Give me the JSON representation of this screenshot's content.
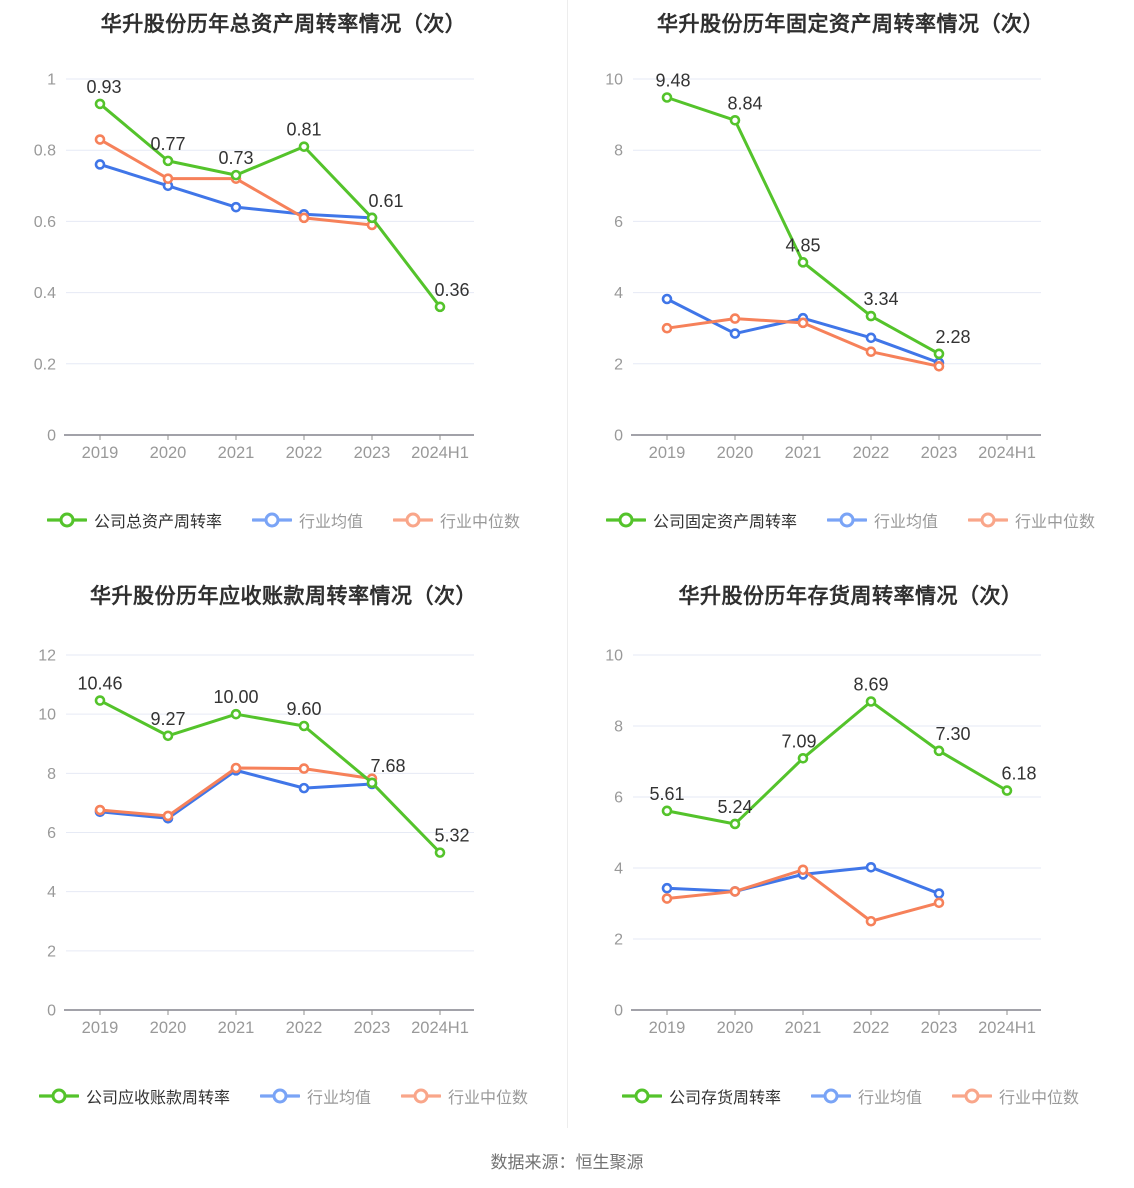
{
  "page": {
    "source_text": "数据来源：恒生聚源"
  },
  "colors": {
    "company_green": "#54c32b",
    "industry_avg_blue": "#4076e8",
    "industry_median_orange": "#f6815a",
    "legend_blue": "#7aa4f6",
    "legend_orange": "#f9a68a",
    "gridline": "#e6eaf5",
    "axis_line": "#6b6b76",
    "tick_label": "#999999",
    "data_label": "#333333"
  },
  "chart_data": [
    {
      "type": "line",
      "title": "华升股份历年总资产周转率情况（次）",
      "categories": [
        "2019",
        "2020",
        "2021",
        "2022",
        "2023",
        "2024H1"
      ],
      "ylim": [
        0,
        1
      ],
      "yticks": [
        "0",
        "0.2",
        "0.4",
        "0.6",
        "0.8",
        "1"
      ],
      "grid": true,
      "legend_position": "bottom",
      "series": [
        {
          "name": "公司总资产周转率",
          "values": [
            0.93,
            0.77,
            0.73,
            0.81,
            0.61,
            0.36
          ],
          "point_labels": [
            "0.93",
            "0.77",
            "0.73",
            "0.81",
            "0.61",
            "0.36"
          ]
        },
        {
          "name": "行业均值",
          "values": [
            0.76,
            0.7,
            0.64,
            0.62,
            0.61,
            null
          ]
        },
        {
          "name": "行业中位数",
          "values": [
            0.83,
            0.72,
            0.72,
            0.61,
            0.59,
            null
          ]
        }
      ]
    },
    {
      "type": "line",
      "title": "华升股份历年固定资产周转率情况（次）",
      "categories": [
        "2019",
        "2020",
        "2021",
        "2022",
        "2023",
        "2024H1"
      ],
      "ylim": [
        0,
        10
      ],
      "yticks": [
        "0",
        "2",
        "4",
        "6",
        "8",
        "10"
      ],
      "grid": true,
      "legend_position": "bottom",
      "series": [
        {
          "name": "公司固定资产周转率",
          "values": [
            9.48,
            8.84,
            4.85,
            3.34,
            2.28,
            null
          ],
          "point_labels": [
            "9.48",
            "8.84",
            "4.85",
            "3.34",
            "2.28",
            ""
          ]
        },
        {
          "name": "行业均值",
          "values": [
            3.82,
            2.85,
            3.28,
            2.73,
            2.03,
            null
          ]
        },
        {
          "name": "行业中位数",
          "values": [
            3.0,
            3.27,
            3.15,
            2.34,
            1.93,
            null
          ]
        }
      ]
    },
    {
      "type": "line",
      "title": "华升股份历年应收账款周转率情况（次）",
      "categories": [
        "2019",
        "2020",
        "2021",
        "2022",
        "2023",
        "2024H1"
      ],
      "ylim": [
        0,
        12
      ],
      "yticks": [
        "0",
        "2",
        "4",
        "6",
        "8",
        "10",
        "12"
      ],
      "grid": true,
      "legend_position": "bottom",
      "series": [
        {
          "name": "公司应收账款周转率",
          "values": [
            10.46,
            9.27,
            10.0,
            9.6,
            7.68,
            5.32
          ],
          "point_labels": [
            "10.46",
            "9.27",
            "10.00",
            "9.60",
            "7.68",
            "5.32"
          ]
        },
        {
          "name": "行业均值",
          "values": [
            6.7,
            6.48,
            8.1,
            7.5,
            7.64,
            null
          ]
        },
        {
          "name": "行业中位数",
          "values": [
            6.76,
            6.56,
            8.18,
            8.16,
            7.82,
            null
          ]
        }
      ]
    },
    {
      "type": "line",
      "title": "华升股份历年存货周转率情况（次）",
      "categories": [
        "2019",
        "2020",
        "2021",
        "2022",
        "2023",
        "2024H1"
      ],
      "ylim": [
        0,
        10
      ],
      "yticks": [
        "0",
        "2",
        "4",
        "6",
        "8",
        "10"
      ],
      "grid": true,
      "legend_position": "bottom",
      "series": [
        {
          "name": "公司存货周转率",
          "values": [
            5.61,
            5.24,
            7.09,
            8.69,
            7.3,
            6.18
          ],
          "point_labels": [
            "5.61",
            "5.24",
            "7.09",
            "8.69",
            "7.30",
            "6.18"
          ]
        },
        {
          "name": "行业均值",
          "values": [
            3.43,
            3.34,
            3.82,
            4.02,
            3.28,
            null
          ]
        },
        {
          "name": "行业中位数",
          "values": [
            3.14,
            3.34,
            3.95,
            2.5,
            3.02,
            null
          ]
        }
      ]
    }
  ]
}
